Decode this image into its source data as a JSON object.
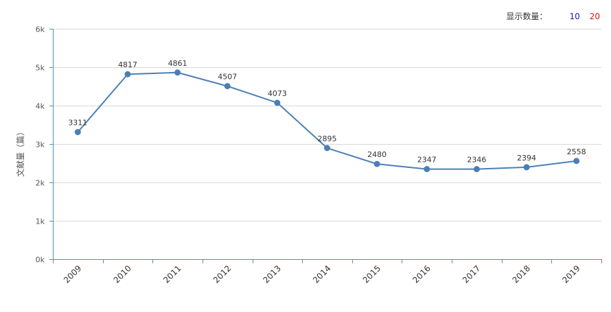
{
  "controls": {
    "display_count_label": "显示数量：",
    "option_10": "10",
    "option_20": "20"
  },
  "colors": {
    "series": "#4a7fb6",
    "axis": "#4a90b8",
    "grid": "#d9d9d9",
    "option_10": "#1a19c9",
    "option_20": "#e00f0f"
  },
  "chart_data": {
    "type": "line",
    "title": "",
    "xlabel": "",
    "ylabel": "文献量（篇）",
    "categories": [
      "2009",
      "2010",
      "2011",
      "2012",
      "2013",
      "2014",
      "2015",
      "2016",
      "2017",
      "2018",
      "2019"
    ],
    "series": [
      {
        "values": [
          3311,
          4817,
          4861,
          4507,
          4073,
          2895,
          2480,
          2347,
          2346,
          2394,
          2558
        ]
      }
    ],
    "ylim": [
      0,
      6000
    ],
    "yticks": [
      0,
      1000,
      2000,
      3000,
      4000,
      5000,
      6000
    ],
    "ytick_labels": [
      "0k",
      "1k",
      "2k",
      "3k",
      "4k",
      "5k",
      "6k"
    ],
    "grid": true,
    "data_labels": true
  }
}
